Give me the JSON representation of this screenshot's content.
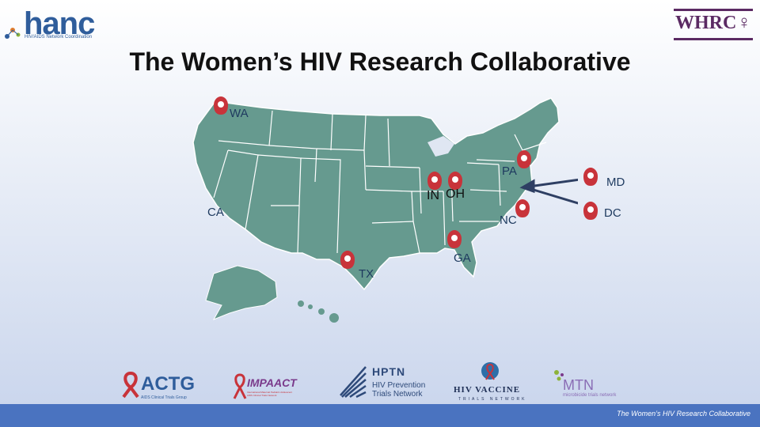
{
  "title": "The Women’s HIV Research Collaborative",
  "logos": {
    "hanc": {
      "name": "hanc",
      "tagline": "HIV/AIDS Network Coordination"
    },
    "whrc": {
      "name": "WHRC",
      "symbol": "♀"
    }
  },
  "map": {
    "labels": {
      "wa": "WA",
      "ca": "CA",
      "tx": "TX",
      "in": "IN",
      "oh": "OH",
      "ga": "GA",
      "pa": "PA",
      "nc": "NC",
      "md": "MD",
      "dc": "DC"
    },
    "colors": {
      "land": "#669a8f",
      "border": "#ffffff",
      "pin": "#c8333a"
    }
  },
  "partners": {
    "actg": {
      "name": "ACTG",
      "tagline": "AIDS Clinical Trials Group"
    },
    "impaact": {
      "name": "IMPAACT",
      "tagline": "International Maternal Pediatric Adolescent AIDS Clinical Trials Network"
    },
    "hptn": {
      "name": "HPTN",
      "line1": "HIV Prevention",
      "line2": "Trials Network"
    },
    "hvtn": {
      "name": "HIV VACCINE",
      "sub": "TRIALS NETWORK"
    },
    "mtn": {
      "name": "MTN",
      "sub": "microbicide trials network"
    }
  },
  "footer": "The Women’s HIV Research Collaborative"
}
